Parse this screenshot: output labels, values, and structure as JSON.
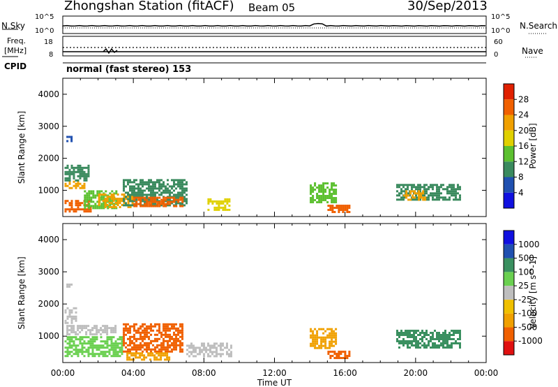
{
  "header": {
    "title": "Zhongshan Station (fitACF)",
    "beam": "Beam 05",
    "date": "30/Sep/2013",
    "cpid": "normal (fast stereo) 153"
  },
  "status_panels": {
    "noise_label": "N.Sky",
    "noise_ticks": [
      "10^5",
      "10^0"
    ],
    "search_label": "N.Search",
    "search_ticks": [
      "10^5",
      "10^0"
    ],
    "freq_label": "Freq.",
    "freq_unit": "[MHz]",
    "freq_ticks": [
      "18",
      "8"
    ],
    "nave_label": "Nave",
    "nave_ticks": [
      "60",
      "0"
    ],
    "cpid_label": "CPID"
  },
  "colors": {
    "power": [
      "#1010e0",
      "#2050b0",
      "#3a8a5e",
      "#5cc030",
      "#e0d000",
      "#f0a000",
      "#f06000",
      "#e02000"
    ],
    "velocity": [
      "#e01010",
      "#f06000",
      "#f0a000",
      "#f0c000",
      "#bebebe",
      "#6ad050",
      "#3a9060",
      "#2050b0",
      "#1010e0"
    ]
  },
  "chart_data": [
    {
      "type": "heatmap",
      "xlabel": "",
      "ylabel": "Slant Range [km]",
      "x_ticks": [
        "00:00",
        "04:00",
        "08:00",
        "12:00",
        "16:00",
        "20:00",
        "00:00"
      ],
      "y_ticks": [
        "1000",
        "2000",
        "3000",
        "4000"
      ],
      "xlim_hours": [
        0,
        24
      ],
      "ylim_km": [
        180,
        4500
      ],
      "colorbar": {
        "label": "Power [dB]",
        "ticks": [
          "4",
          "8",
          "12",
          "16",
          "20",
          "24",
          "28"
        ],
        "range": [
          0,
          32
        ]
      },
      "blobs": [
        {
          "t0": 0.1,
          "t1": 1.6,
          "r0": 350,
          "r1": 700,
          "val": 26
        },
        {
          "t0": 0.1,
          "t1": 1.2,
          "r0": 1050,
          "r1": 1300,
          "val": 20
        },
        {
          "t0": 0.1,
          "t1": 1.5,
          "r0": 1300,
          "r1": 1800,
          "val": 8
        },
        {
          "t0": 0.2,
          "t1": 0.5,
          "r0": 2550,
          "r1": 2700,
          "val": 6
        },
        {
          "t0": 1.2,
          "t1": 3.0,
          "r0": 450,
          "r1": 1000,
          "val": 12
        },
        {
          "t0": 2.0,
          "t1": 4.0,
          "r0": 450,
          "r1": 900,
          "val": 22
        },
        {
          "t0": 3.4,
          "t1": 7.0,
          "r0": 500,
          "r1": 1350,
          "val": 10
        },
        {
          "t0": 4.0,
          "t1": 6.8,
          "r0": 500,
          "r1": 800,
          "val": 24
        },
        {
          "t0": 8.2,
          "t1": 9.5,
          "r0": 400,
          "r1": 750,
          "val": 18
        },
        {
          "t0": 14.0,
          "t1": 15.5,
          "r0": 600,
          "r1": 1250,
          "val": 14
        },
        {
          "t0": 15.0,
          "t1": 16.2,
          "r0": 300,
          "r1": 550,
          "val": 24
        },
        {
          "t0": 18.9,
          "t1": 22.5,
          "r0": 700,
          "r1": 1200,
          "val": 8
        },
        {
          "t0": 19.3,
          "t1": 20.6,
          "r0": 700,
          "r1": 1000,
          "val": 22
        }
      ]
    },
    {
      "type": "heatmap",
      "xlabel": "Time UT",
      "ylabel": "Slant Range [km]",
      "x_ticks": [
        "00:00",
        "04:00",
        "08:00",
        "12:00",
        "16:00",
        "20:00",
        "00:00"
      ],
      "y_ticks": [
        "1000",
        "2000",
        "3000",
        "4000"
      ],
      "xlim_hours": [
        0,
        24
      ],
      "ylim_km": [
        180,
        4500
      ],
      "colorbar": {
        "label": "Velocity [m s^-1]",
        "ticks": [
          "-1000",
          "-500",
          "-100",
          "-25",
          "25",
          "100",
          "500",
          "1000"
        ]
      },
      "blobs": [
        {
          "t0": 0.1,
          "t1": 3.4,
          "r0": 350,
          "r1": 1000,
          "cls": 5
        },
        {
          "t0": 0.2,
          "t1": 3.0,
          "r0": 1050,
          "r1": 1350,
          "cls": 4
        },
        {
          "t0": 0.1,
          "t1": 0.8,
          "r0": 1400,
          "r1": 1900,
          "cls": 4
        },
        {
          "t0": 0.2,
          "t1": 0.5,
          "r0": 2550,
          "r1": 2700,
          "cls": 4
        },
        {
          "t0": 3.4,
          "t1": 6.8,
          "r0": 500,
          "r1": 1400,
          "cls": 1
        },
        {
          "t0": 3.6,
          "t1": 6.0,
          "r0": 300,
          "r1": 500,
          "cls": 2
        },
        {
          "t0": 7.0,
          "t1": 9.5,
          "r0": 400,
          "r1": 800,
          "cls": 4
        },
        {
          "t0": 14.0,
          "t1": 15.5,
          "r0": 600,
          "r1": 1250,
          "cls": 2
        },
        {
          "t0": 15.0,
          "t1": 16.2,
          "r0": 300,
          "r1": 550,
          "cls": 1
        },
        {
          "t0": 18.9,
          "t1": 22.5,
          "r0": 650,
          "r1": 1200,
          "cls": 6
        }
      ]
    }
  ]
}
